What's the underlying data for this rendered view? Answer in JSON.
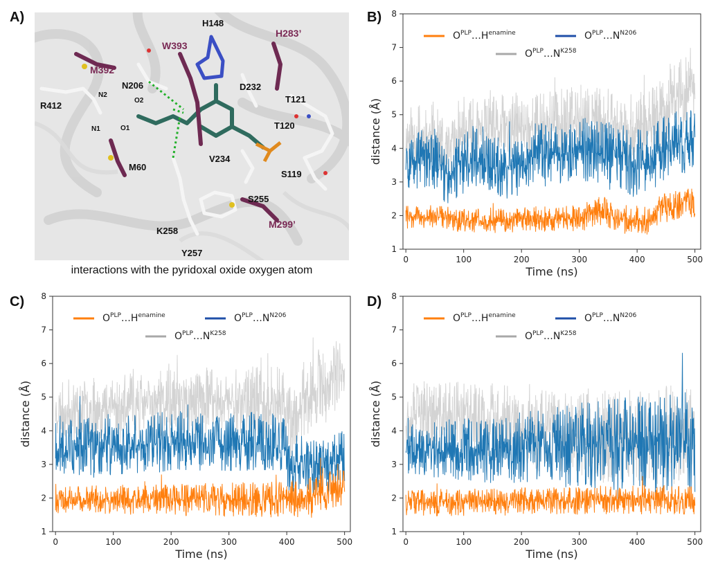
{
  "panels": {
    "a": "A)",
    "b": "B)",
    "c": "C)",
    "d": "D)"
  },
  "molecule": {
    "caption": "interactions with the pyridoxal oxide oxygen atom",
    "residue_labels": [
      {
        "text": "H148",
        "color": "#111111"
      },
      {
        "text": "H283’",
        "color": "#7a2a55"
      },
      {
        "text": "W393",
        "color": "#7a2a55"
      },
      {
        "text": "M392",
        "color": "#7a2a55"
      },
      {
        "text": "N206",
        "color": "#111111"
      },
      {
        "text": "D232",
        "color": "#111111"
      },
      {
        "text": "N2",
        "color": "#111111"
      },
      {
        "text": "R412",
        "color": "#111111"
      },
      {
        "text": "O2",
        "color": "#111111"
      },
      {
        "text": "T121",
        "color": "#111111"
      },
      {
        "text": "N1",
        "color": "#111111"
      },
      {
        "text": "O1",
        "color": "#111111"
      },
      {
        "text": "T120",
        "color": "#111111"
      },
      {
        "text": "M60",
        "color": "#111111"
      },
      {
        "text": "V234",
        "color": "#111111"
      },
      {
        "text": "S119",
        "color": "#111111"
      },
      {
        "text": "S255",
        "color": "#111111"
      },
      {
        "text": "K258",
        "color": "#111111"
      },
      {
        "text": "M299’",
        "color": "#7a2a55"
      },
      {
        "text": "Y257",
        "color": "#111111"
      }
    ]
  },
  "legend": {
    "o": "O",
    "sup_plp": "PLP",
    "dots": "…",
    "h": "H",
    "sup_enamine": "enamine",
    "n": "N",
    "sup_n206": "N206",
    "sup_k258": "K258"
  },
  "colors": {
    "orange": "#ff7f0e",
    "blue": "#1f77b4",
    "blue_legend": "#1f4fa8",
    "gray": "#d3d3d3",
    "gray_legend": "#a8a8a8"
  },
  "chart_data": [
    {
      "panel": "B)",
      "type": "line",
      "xlabel": "Time (ns)",
      "ylabel": "distance (Å)",
      "xlim": [
        0,
        500
      ],
      "ylim": [
        1,
        8
      ],
      "xticks": [
        0,
        100,
        200,
        300,
        400,
        500
      ],
      "yticks": [
        1,
        2,
        3,
        4,
        5,
        6,
        7,
        8
      ],
      "legend_position": "top",
      "series": [
        {
          "key": "h_enamine",
          "color": "#ff7f0e",
          "mean": [
            [
              0,
              1.95
            ],
            [
              60,
              1.95
            ],
            [
              100,
              1.85
            ],
            [
              300,
              1.9
            ],
            [
              340,
              2.2
            ],
            [
              360,
              1.9
            ],
            [
              420,
              1.85
            ],
            [
              440,
              2.2
            ],
            [
              500,
              2.4
            ]
          ],
          "spread": [
            [
              0,
              0.35
            ],
            [
              500,
              0.45
            ]
          ]
        },
        {
          "key": "n206",
          "color": "#1f77b4",
          "mean": [
            [
              0,
              3.6
            ],
            [
              50,
              3.7
            ],
            [
              70,
              3.2
            ],
            [
              90,
              3.4
            ],
            [
              120,
              3.8
            ],
            [
              150,
              3.4
            ],
            [
              190,
              3.4
            ],
            [
              220,
              3.8
            ],
            [
              290,
              3.8
            ],
            [
              300,
              4.0
            ],
            [
              370,
              3.8
            ],
            [
              390,
              3.5
            ],
            [
              420,
              3.7
            ],
            [
              470,
              4.2
            ],
            [
              500,
              4.2
            ]
          ],
          "spread": [
            [
              0,
              0.9
            ],
            [
              500,
              1.0
            ]
          ]
        },
        {
          "key": "k258",
          "color": "#d3d3d3",
          "mean": [
            [
              0,
              4.3
            ],
            [
              50,
              4.4
            ],
            [
              70,
              3.6
            ],
            [
              90,
              4.4
            ],
            [
              150,
              4.5
            ],
            [
              200,
              4.6
            ],
            [
              300,
              4.8
            ],
            [
              360,
              4.6
            ],
            [
              420,
              4.5
            ],
            [
              460,
              5.4
            ],
            [
              500,
              5.9
            ]
          ],
          "spread": [
            [
              0,
              1.0
            ],
            [
              500,
              1.2
            ]
          ]
        }
      ]
    },
    {
      "panel": "C)",
      "type": "line",
      "xlabel": "Time (ns)",
      "ylabel": "distance (Å)",
      "xlim": [
        0,
        500
      ],
      "ylim": [
        1,
        8
      ],
      "xticks": [
        0,
        100,
        200,
        300,
        400,
        500
      ],
      "yticks": [
        1,
        2,
        3,
        4,
        5,
        6,
        7,
        8
      ],
      "legend_position": "top",
      "series": [
        {
          "key": "h_enamine",
          "color": "#ff7f0e",
          "mean": [
            [
              0,
              1.95
            ],
            [
              400,
              1.95
            ],
            [
              420,
              2.0
            ],
            [
              470,
              2.2
            ],
            [
              500,
              2.4
            ]
          ],
          "spread": [
            [
              0,
              0.4
            ],
            [
              500,
              0.6
            ]
          ]
        },
        {
          "key": "n206",
          "color": "#1f77b4",
          "mean": [
            [
              0,
              3.6
            ],
            [
              100,
              3.5
            ],
            [
              200,
              3.7
            ],
            [
              300,
              3.7
            ],
            [
              395,
              3.6
            ],
            [
              405,
              3.0
            ],
            [
              480,
              3.0
            ],
            [
              500,
              3.4
            ]
          ],
          "spread": [
            [
              0,
              0.9
            ],
            [
              500,
              0.9
            ]
          ]
        },
        {
          "key": "k258",
          "color": "#d3d3d3",
          "mean": [
            [
              0,
              4.6
            ],
            [
              200,
              4.8
            ],
            [
              300,
              4.9
            ],
            [
              395,
              4.8
            ],
            [
              410,
              4.0
            ],
            [
              430,
              5.0
            ],
            [
              480,
              5.5
            ],
            [
              500,
              5.5
            ]
          ],
          "spread": [
            [
              0,
              0.9
            ],
            [
              500,
              1.2
            ]
          ]
        }
      ]
    },
    {
      "panel": "D)",
      "type": "line",
      "xlabel": "Time (ns)",
      "ylabel": "distance (Å)",
      "xlim": [
        0,
        500
      ],
      "ylim": [
        1,
        8
      ],
      "xticks": [
        0,
        100,
        200,
        300,
        400,
        500
      ],
      "yticks": [
        1,
        2,
        3,
        4,
        5,
        6,
        7,
        8
      ],
      "legend_position": "top",
      "series": [
        {
          "key": "h_enamine",
          "color": "#ff7f0e",
          "mean": [
            [
              0,
              1.85
            ],
            [
              200,
              1.9
            ],
            [
              400,
              1.95
            ],
            [
              500,
              1.95
            ]
          ],
          "spread": [
            [
              0,
              0.4
            ],
            [
              500,
              0.45
            ]
          ]
        },
        {
          "key": "n206",
          "color": "#1f77b4",
          "mean": [
            [
              0,
              3.5
            ],
            [
              150,
              3.4
            ],
            [
              200,
              3.5
            ],
            [
              300,
              3.6
            ],
            [
              400,
              3.6
            ],
            [
              500,
              3.6
            ]
          ],
          "spread": [
            [
              0,
              0.8
            ],
            [
              500,
              1.6
            ]
          ]
        },
        {
          "key": "k258",
          "color": "#d3d3d3",
          "mean": [
            [
              0,
              4.5
            ],
            [
              150,
              4.3
            ],
            [
              200,
              4.0
            ],
            [
              300,
              3.9
            ],
            [
              400,
              3.8
            ],
            [
              500,
              3.8
            ]
          ],
          "spread": [
            [
              0,
              1.0
            ],
            [
              500,
              1.6
            ]
          ]
        }
      ]
    }
  ]
}
